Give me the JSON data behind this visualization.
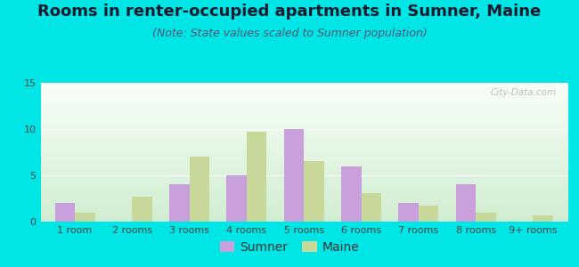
{
  "title": "Rooms in renter-occupied apartments in Sumner, Maine",
  "subtitle": "(Note: State values scaled to Sumner population)",
  "categories": [
    "1 room",
    "2 rooms",
    "3 rooms",
    "4 rooms",
    "5 rooms",
    "6 rooms",
    "7 rooms",
    "8 rooms",
    "9+ rooms"
  ],
  "sumner_values": [
    2,
    0,
    4,
    5,
    10,
    6,
    2,
    4,
    0
  ],
  "maine_values": [
    1,
    2.7,
    7,
    9.7,
    6.5,
    3.1,
    1.7,
    1,
    0.7
  ],
  "sumner_color": "#c9a0dc",
  "maine_color": "#c8d89a",
  "background_outer": "#00e5e5",
  "ylim": [
    0,
    15
  ],
  "yticks": [
    0,
    5,
    10,
    15
  ],
  "bar_width": 0.35,
  "title_fontsize": 13,
  "subtitle_fontsize": 9,
  "legend_fontsize": 10,
  "tick_fontsize": 8,
  "watermark": "City-Data.com"
}
